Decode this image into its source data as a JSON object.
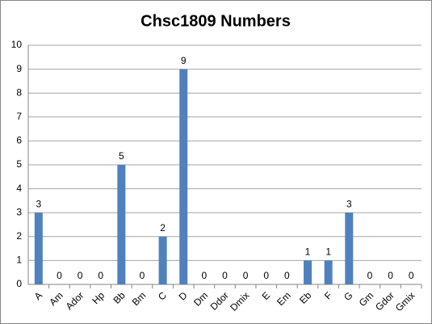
{
  "chart_data": {
    "type": "bar",
    "title": "Chsc1809 Numbers",
    "categories": [
      "A",
      "Am",
      "Ador",
      "Hp",
      "Bb",
      "Bm",
      "C",
      "D",
      "Dm",
      "Ddor",
      "Dmix",
      "E",
      "Em",
      "Eb",
      "F",
      "G",
      "Gm",
      "Gdor",
      "Gmix"
    ],
    "values": [
      3,
      0,
      0,
      0,
      5,
      0,
      2,
      9,
      0,
      0,
      0,
      0,
      0,
      1,
      1,
      3,
      0,
      0,
      0
    ],
    "color": "#4f81bd",
    "ylim": [
      0,
      10
    ],
    "yticks": [
      0,
      1,
      2,
      3,
      4,
      5,
      6,
      7,
      8,
      9,
      10
    ],
    "grid": true
  }
}
